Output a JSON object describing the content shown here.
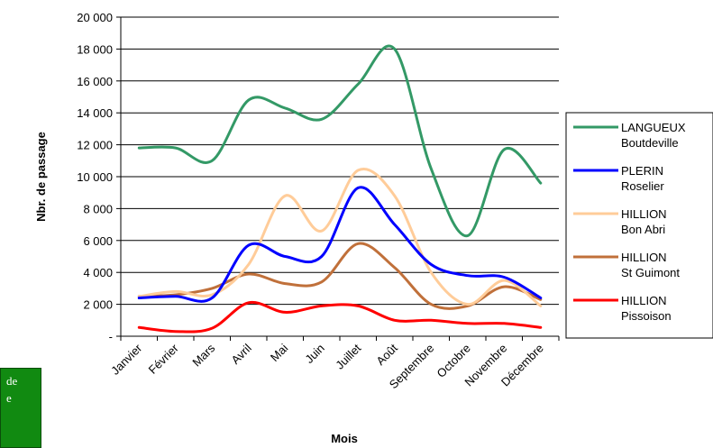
{
  "note_box": {
    "line1": "de",
    "line2": "e",
    "color": "#118a11"
  },
  "chart_data": {
    "type": "line",
    "title": "",
    "xlabel": "Mois",
    "ylabel": "Nbr. de passage",
    "ylim": [
      0,
      20000
    ],
    "yticks": [
      {
        "value": 0,
        "label": "-"
      },
      {
        "value": 2000,
        "label": "2 000"
      },
      {
        "value": 4000,
        "label": "4 000"
      },
      {
        "value": 6000,
        "label": "6 000"
      },
      {
        "value": 8000,
        "label": "8 000"
      },
      {
        "value": 10000,
        "label": "10 000"
      },
      {
        "value": 12000,
        "label": "12 000"
      },
      {
        "value": 14000,
        "label": "14 000"
      },
      {
        "value": 16000,
        "label": "16 000"
      },
      {
        "value": 18000,
        "label": "18 000"
      },
      {
        "value": 20000,
        "label": "20 000"
      }
    ],
    "grid": true,
    "smooth": true,
    "legend_position": "right",
    "x": [
      "Janvier",
      "Février",
      "Mars",
      "Avril",
      "Mai",
      "Juin",
      "Juillet",
      "Août",
      "Septembre",
      "Octobre",
      "Novembre",
      "Décembre"
    ],
    "series": [
      {
        "name_line1": "LANGUEUX",
        "name_line2": "Boutdeville",
        "color": "#339966",
        "values": [
          11800,
          11800,
          11000,
          14800,
          14300,
          13600,
          15800,
          18000,
          10500,
          6300,
          11700,
          9600
        ]
      },
      {
        "name_line1": "PLERIN",
        "name_line2": "Roselier",
        "color": "#0000ff",
        "values": [
          2400,
          2500,
          2400,
          5700,
          5000,
          5000,
          9300,
          7000,
          4500,
          3800,
          3700,
          2400
        ]
      },
      {
        "name_line1": "HILLION",
        "name_line2": "Bon Abri",
        "color": "#ffcc99",
        "values": [
          2500,
          2800,
          2600,
          4500,
          8800,
          6600,
          10400,
          8800,
          4000,
          2000,
          3500,
          1900
        ]
      },
      {
        "name_line1": "HILLION",
        "name_line2": "St Guimont",
        "color": "#c0703a",
        "values": [
          2500,
          2600,
          3000,
          3900,
          3300,
          3400,
          5800,
          4300,
          2000,
          1900,
          3100,
          2300
        ]
      },
      {
        "name_line1": "HILLION",
        "name_line2": "Pissoison",
        "color": "#ff0000",
        "values": [
          550,
          300,
          500,
          2100,
          1500,
          1900,
          1900,
          1000,
          1000,
          800,
          800,
          550
        ]
      }
    ]
  }
}
